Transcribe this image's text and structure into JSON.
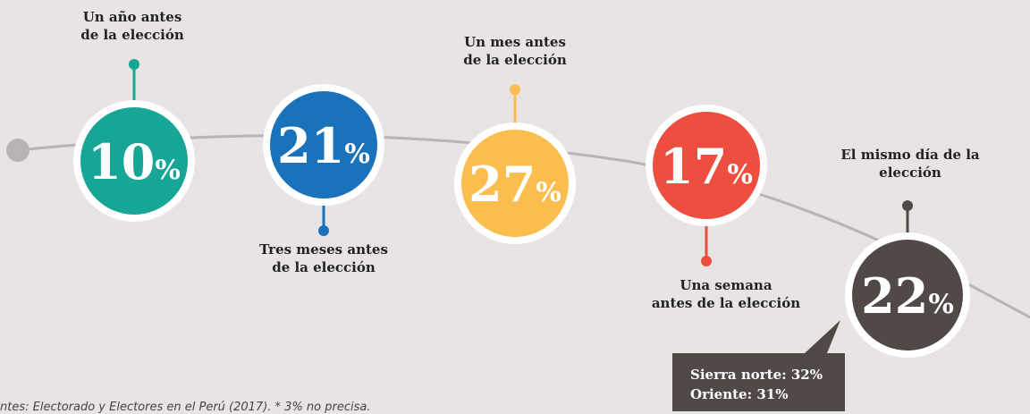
{
  "steps": [
    {
      "label": [
        "Un año antes",
        "de la elección"
      ],
      "value": 10,
      "unit": "%",
      "color": "#17a596"
    },
    {
      "label": [
        "Tres meses antes",
        "de la elección"
      ],
      "value": 21,
      "unit": "%",
      "color": "#1a72bb"
    },
    {
      "label": [
        "Un mes antes",
        "de la elección"
      ],
      "value": 27,
      "unit": "%",
      "color": "#fbbd4e"
    },
    {
      "label": [
        "Una semana",
        "antes de la elección"
      ],
      "value": 17,
      "unit": "%",
      "color": "#ed4e3f"
    },
    {
      "label": [
        "El mismo día de la",
        "elección"
      ],
      "value": 22,
      "unit": "%",
      "color": "#514948"
    }
  ],
  "callout": [
    "Sierra norte: 32%",
    "Oriente: 31%"
  ],
  "source": "ntes: Electorado y Electores en el Perú (2017). * 3% no precisa."
}
